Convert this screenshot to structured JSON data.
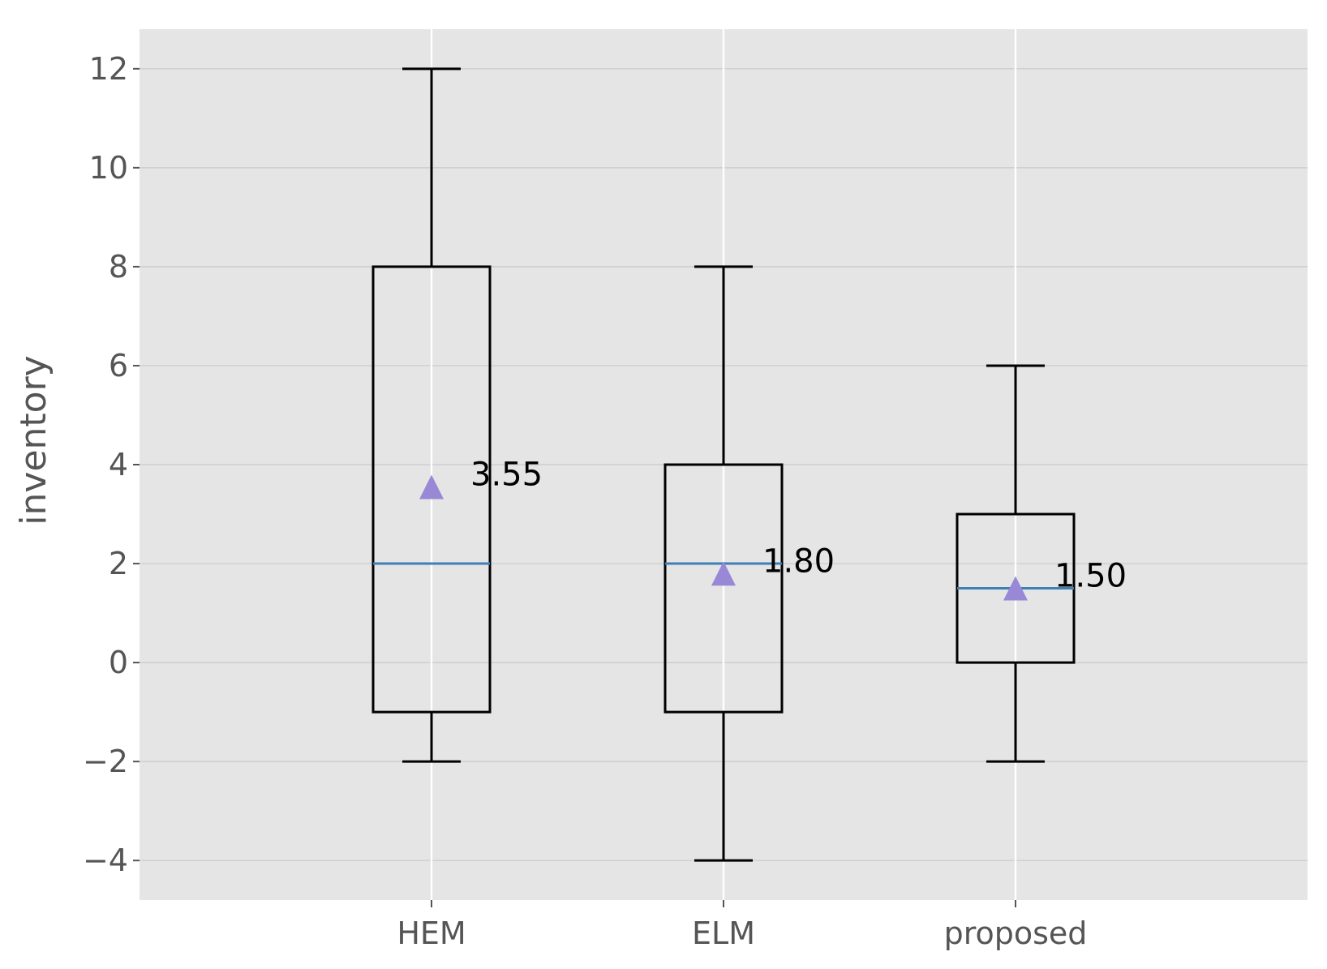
{
  "chart_data": {
    "type": "box",
    "title": "",
    "xlabel": "",
    "ylabel": "inventory",
    "ylim": [
      -4.8,
      12.8
    ],
    "yticks": [
      -4,
      -2,
      0,
      2,
      4,
      6,
      8,
      10,
      12
    ],
    "ytick_labels": [
      "−4",
      "−2",
      "0",
      "2",
      "4",
      "6",
      "8",
      "10",
      "12"
    ],
    "grid": true,
    "categories": [
      "HEM",
      "ELM",
      "proposed"
    ],
    "boxes": [
      {
        "category": "HEM",
        "whisker_low": -2,
        "q1": -1,
        "median": 2,
        "q3": 8,
        "whisker_high": 12,
        "mean": 3.55,
        "mean_label": "3.55"
      },
      {
        "category": "ELM",
        "whisker_low": -4,
        "q1": -1,
        "median": 2,
        "q3": 4,
        "whisker_high": 8,
        "mean": 1.8,
        "mean_label": "1.80"
      },
      {
        "category": "proposed",
        "whisker_low": -2,
        "q1": 0,
        "median": 1.5,
        "q3": 3,
        "whisker_high": 6,
        "mean": 1.5,
        "mean_label": "1.50"
      }
    ],
    "colors": {
      "background": "#e5e5e5",
      "grid": "#ffffff",
      "box": "#000000",
      "median": "#3f7fb5",
      "mean_marker": "#9988d6"
    }
  }
}
